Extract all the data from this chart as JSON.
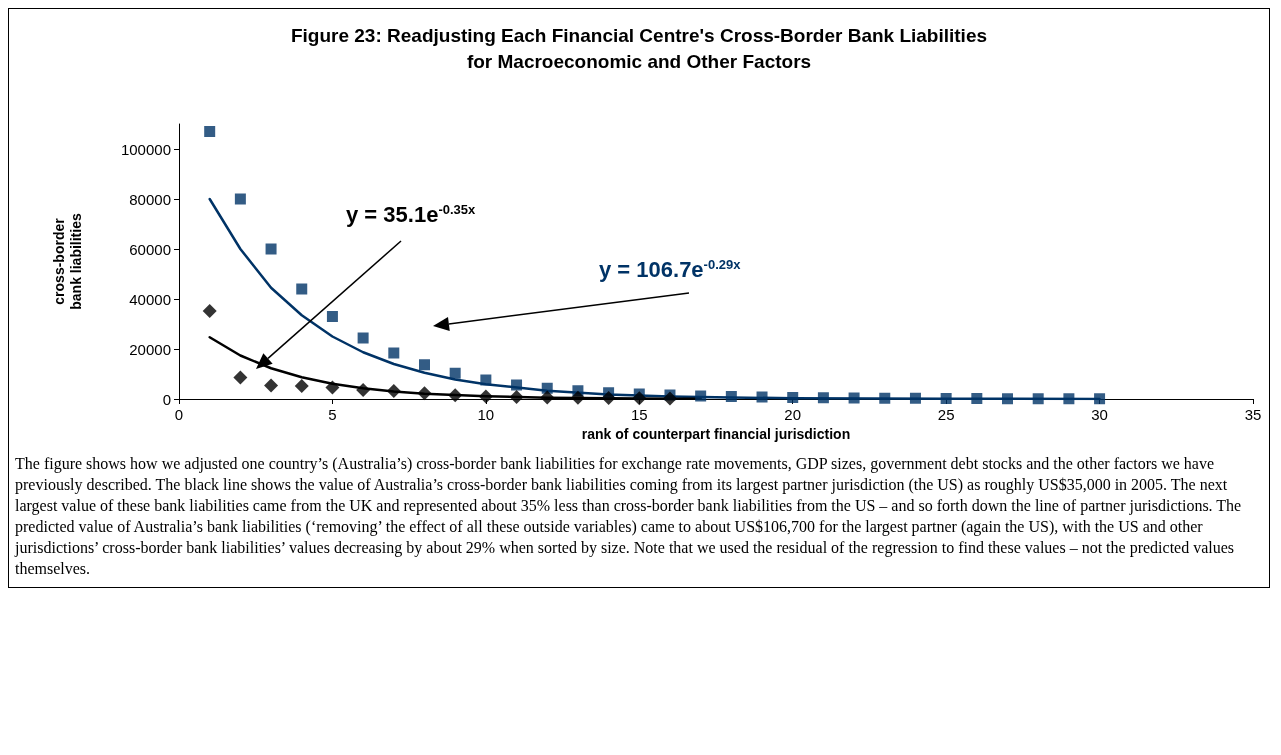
{
  "chart_data": {
    "type": "scatter",
    "title": "Figure 23: Readjusting Each Financial Centre's Cross-Border Bank Liabilities\nfor Macroeconomic and Other Factors",
    "xlabel": "rank of counterpart financial jurisdiction",
    "ylabel": "cross-border\nbank liabilities",
    "xlim": [
      0,
      35
    ],
    "xticks": [
      0,
      5,
      10,
      15,
      20,
      25,
      30,
      35
    ],
    "ylim": [
      0,
      110000
    ],
    "yticks": [
      0,
      20000,
      40000,
      60000,
      80000,
      100000
    ],
    "grid": false,
    "series": [
      {
        "marker": "square",
        "color": "#003366",
        "x": [
          1,
          2,
          3,
          4,
          5,
          6,
          7,
          8,
          9,
          10,
          11,
          12,
          13,
          14,
          15,
          16,
          17,
          18,
          19,
          20,
          21,
          22,
          23,
          24,
          25,
          26,
          27,
          28,
          29,
          30
        ],
        "values": [
          107000,
          80000,
          60000,
          44000,
          33000,
          24400,
          18400,
          13700,
          10300,
          7600,
          5600,
          4300,
          3300,
          2500,
          2000,
          1600,
          1200,
          1000,
          800,
          600,
          500,
          400,
          300,
          300,
          200,
          200,
          100,
          100,
          100,
          100
        ]
      },
      {
        "marker": "diamond",
        "color": "#000000",
        "x": [
          1,
          2,
          3,
          4,
          5,
          6,
          7,
          8,
          9,
          10,
          11,
          12,
          13,
          14,
          15,
          16
        ],
        "values": [
          35200,
          8600,
          5400,
          5200,
          4600,
          3600,
          3200,
          2300,
          1500,
          1000,
          800,
          600,
          500,
          400,
          300,
          200
        ]
      },
      {
        "type": "line",
        "marker": "none",
        "line_style": "solid",
        "color": "#003366",
        "x": [
          1,
          2,
          3,
          4,
          5,
          6,
          7,
          8,
          9,
          10,
          12,
          14,
          16,
          18,
          20,
          25,
          30
        ],
        "values": [
          80000,
          60000,
          44500,
          33500,
          25000,
          18700,
          14000,
          10500,
          7800,
          5900,
          3300,
          1800,
          1000,
          600,
          300,
          100,
          0
        ]
      },
      {
        "type": "line",
        "marker": "none",
        "line_style": "solid",
        "color": "#000000",
        "x": [
          1,
          2,
          3,
          4,
          5,
          6,
          7,
          8,
          10,
          12,
          14,
          16,
          17
        ],
        "values": [
          24700,
          17400,
          12300,
          8700,
          6100,
          4300,
          3000,
          2100,
          1100,
          500,
          300,
          100,
          100
        ]
      }
    ],
    "annotations": [
      "y = 35.1e$^{-0.35x}$",
      "y = 106.7e$^{-0.29x}$",
      "The figure shows how we adjusted one country’s (Australia’s) cross-border bank liabilities for exchange rate movements, GDP sizes, government debt stocks and the other factors we have previously described. The black line shows the value of Australia’s cross-border bank liabilities coming from its largest partner jurisdiction (the US) as roughly US$35,000 in 2005. The next largest value of these bank liabilities came from the UK and represented about 35% less than cross-border bank liabilities from the US – and so forth down the line of partner jurisdictions. The predicted value of Australia’s bank liabilities (‘removing’ the effect of all these outside variables) came to about US$106,700 for the largest partner (again the US), with the US and other jurisdictions’ cross-border bank liabilities’ values decreasing by about 29% when sorted by size. Note that we used the residual of the regression to find these values – not the predicted values themselves."
    ]
  }
}
